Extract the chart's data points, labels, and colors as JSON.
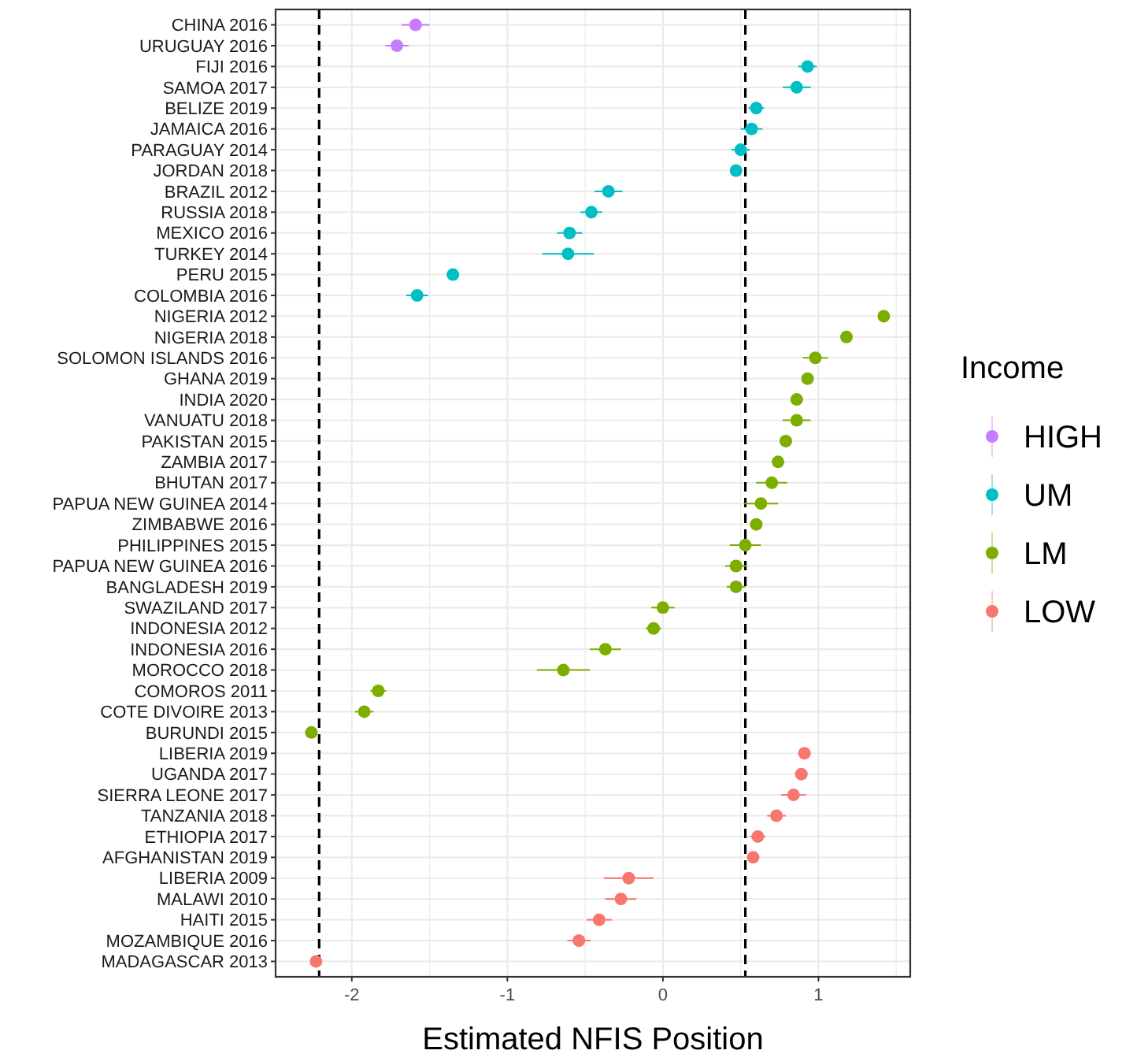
{
  "chart_data": {
    "type": "scatter",
    "orientation": "horizontal",
    "xlabel": "Estimated NFIS Position",
    "legend_title": "Income",
    "legend": "right",
    "grid": true,
    "marker": "circle",
    "categories": [
      "CHINA 2016",
      "URUGUAY 2016",
      "FIJI 2016",
      "SAMOA 2017",
      "BELIZE 2019",
      "JAMAICA 2016",
      "PARAGUAY 2014",
      "JORDAN 2018",
      "BRAZIL 2012",
      "RUSSIA 2018",
      "MEXICO 2016",
      "TURKEY 2014",
      "PERU 2015",
      "COLOMBIA 2016",
      "NIGERIA 2012",
      "NIGERIA 2018",
      "SOLOMON ISLANDS 2016",
      "GHANA 2019",
      "INDIA 2020",
      "VANUATU 2018",
      "PAKISTAN 2015",
      "ZAMBIA 2017",
      "BHUTAN 2017",
      "PAPUA NEW GUINEA 2014",
      "ZIMBABWE 2016",
      "PHILIPPINES 2015",
      "PAPUA NEW GUINEA 2016",
      "BANGLADESH 2019",
      "SWAZILAND 2017",
      "INDONESIA 2012",
      "INDONESIA 2016",
      "MOROCCO 2018",
      "COMOROS 2011",
      "COTE DIVOIRE 2013",
      "BURUNDI 2015",
      "LIBERIA 2019",
      "UGANDA 2017",
      "SIERRA LEONE 2017",
      "TANZANIA 2018",
      "ETHIOPIA 2017",
      "AFGHANISTAN 2019",
      "LIBERIA 2009",
      "MALAWI 2010",
      "HAITI 2015",
      "MOZAMBIQUE 2016",
      "MADAGASCAR 2013"
    ],
    "xlim": [
      -2.49,
      1.59
    ],
    "xticks": [
      -2,
      -1,
      0,
      1
    ],
    "ref_lines": [
      {
        "axis": "x",
        "value": -2.21,
        "line_style": "dashed",
        "color": "#000000"
      },
      {
        "axis": "x",
        "value": 0.53,
        "line_style": "dashed",
        "color": "#000000"
      }
    ],
    "series": [
      {
        "name": "HIGH",
        "color": "#c77cff",
        "values": [
          -1.59,
          -1.71,
          null,
          null,
          null,
          null,
          null,
          null,
          null,
          null,
          null,
          null,
          null,
          null,
          null,
          null,
          null,
          null,
          null,
          null,
          null,
          null,
          null,
          null,
          null,
          null,
          null,
          null,
          null,
          null,
          null,
          null,
          null,
          null,
          null,
          null,
          null,
          null,
          null,
          null,
          null,
          null,
          null,
          null,
          null,
          null
        ],
        "errors": [
          0.09,
          0.075,
          null,
          null,
          null,
          null,
          null,
          null,
          null,
          null,
          null,
          null,
          null,
          null,
          null,
          null,
          null,
          null,
          null,
          null,
          null,
          null,
          null,
          null,
          null,
          null,
          null,
          null,
          null,
          null,
          null,
          null,
          null,
          null,
          null,
          null,
          null,
          null,
          null,
          null,
          null,
          null,
          null,
          null,
          null,
          null
        ]
      },
      {
        "name": "UM",
        "color": "#00bfc4",
        "values": [
          null,
          null,
          0.93,
          0.86,
          0.6,
          0.57,
          0.5,
          0.47,
          -0.35,
          -0.46,
          -0.6,
          -0.61,
          -1.35,
          -1.58,
          null,
          null,
          null,
          null,
          null,
          null,
          null,
          null,
          null,
          null,
          null,
          null,
          null,
          null,
          null,
          null,
          null,
          null,
          null,
          null,
          null,
          null,
          null,
          null,
          null,
          null,
          null,
          null,
          null,
          null,
          null,
          null
        ],
        "errors": [
          null,
          null,
          0.06,
          0.09,
          0.05,
          0.07,
          0.06,
          0.02,
          0.09,
          0.07,
          0.08,
          0.165,
          0.04,
          0.07,
          null,
          null,
          null,
          null,
          null,
          null,
          null,
          null,
          null,
          null,
          null,
          null,
          null,
          null,
          null,
          null,
          null,
          null,
          null,
          null,
          null,
          null,
          null,
          null,
          null,
          null,
          null,
          null,
          null,
          null,
          null,
          null
        ]
      },
      {
        "name": "LM",
        "color": "#7cae00",
        "values": [
          null,
          null,
          null,
          null,
          null,
          null,
          null,
          null,
          null,
          null,
          null,
          null,
          null,
          null,
          1.42,
          1.18,
          0.98,
          0.93,
          0.86,
          0.86,
          0.79,
          0.74,
          0.7,
          0.63,
          0.6,
          0.53,
          0.47,
          0.47,
          0.0,
          -0.06,
          -0.37,
          -0.64,
          -1.83,
          -1.92,
          -2.26,
          null,
          null,
          null,
          null,
          null,
          null,
          null,
          null,
          null,
          null,
          null
        ],
        "errors": [
          null,
          null,
          null,
          null,
          null,
          null,
          null,
          null,
          null,
          null,
          null,
          null,
          null,
          null,
          0.02,
          0.02,
          0.08,
          0.03,
          0.04,
          0.09,
          0.03,
          0.04,
          0.1,
          0.11,
          0.04,
          0.1,
          0.07,
          0.06,
          0.075,
          0.05,
          0.1,
          0.17,
          0.05,
          0.06,
          0.02,
          null,
          null,
          null,
          null,
          null,
          null,
          null,
          null,
          null,
          null,
          null
        ]
      },
      {
        "name": "LOW",
        "color": "#f8766d",
        "values": [
          null,
          null,
          null,
          null,
          null,
          null,
          null,
          null,
          null,
          null,
          null,
          null,
          null,
          null,
          null,
          null,
          null,
          null,
          null,
          null,
          null,
          null,
          null,
          null,
          null,
          null,
          null,
          null,
          null,
          null,
          null,
          null,
          null,
          null,
          null,
          0.91,
          0.89,
          0.84,
          0.73,
          0.61,
          0.58,
          -0.22,
          -0.27,
          -0.41,
          -0.54,
          -2.23
        ],
        "errors": [
          null,
          null,
          null,
          null,
          null,
          null,
          null,
          null,
          null,
          null,
          null,
          null,
          null,
          null,
          null,
          null,
          null,
          null,
          null,
          null,
          null,
          null,
          null,
          null,
          null,
          null,
          null,
          null,
          null,
          null,
          null,
          null,
          null,
          null,
          null,
          0.02,
          0.04,
          0.08,
          0.06,
          0.05,
          0.03,
          0.16,
          0.1,
          0.08,
          0.075,
          0.02
        ]
      }
    ]
  }
}
